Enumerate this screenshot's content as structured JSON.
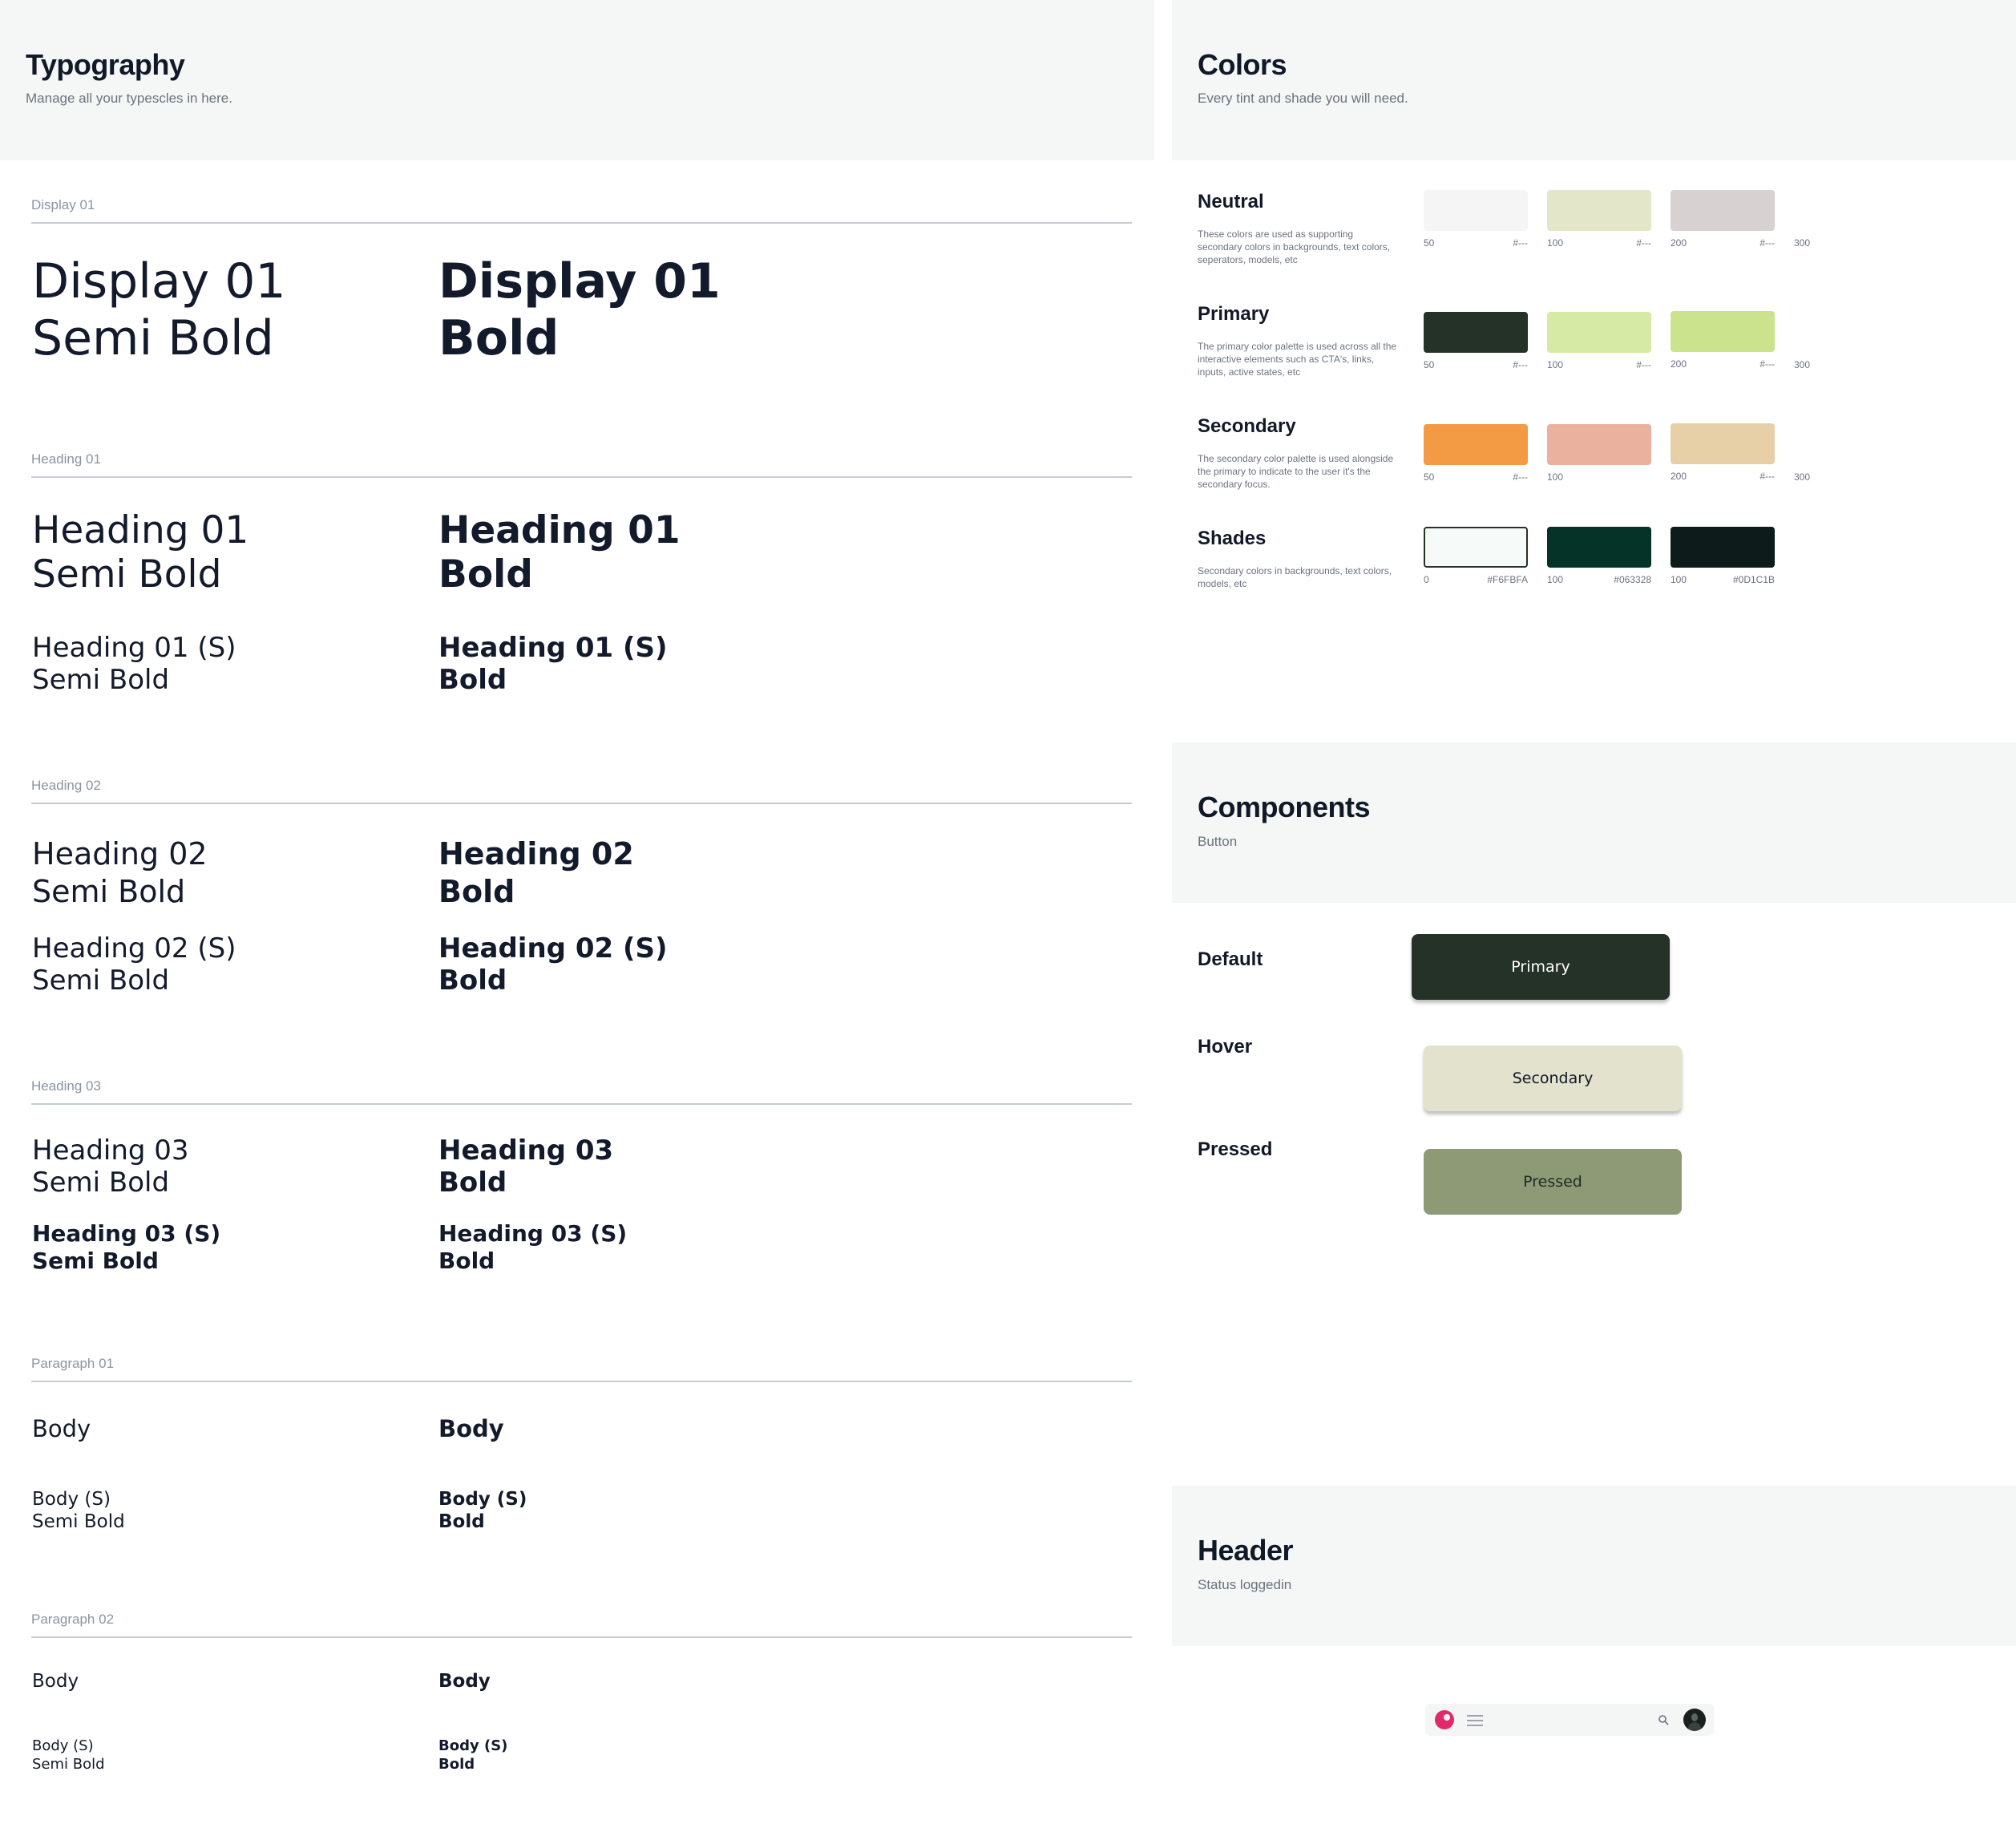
{
  "typography": {
    "title": "Typography",
    "subtitle": "Manage all your typescles in here.",
    "sections": {
      "display01": {
        "label": "Display 01",
        "semi": "Display 01\nSemi Bold",
        "bold": "Display 01\nBold"
      },
      "heading01": {
        "label": "Heading 01",
        "semi": "Heading 01\nSemi Bold",
        "bold": "Heading 01\nBold",
        "small_semi": "Heading 01 (S)\nSemi Bold",
        "small_bold": "Heading 01 (S)\nBold"
      },
      "heading02": {
        "label": "Heading 02",
        "semi": "Heading 02\nSemi Bold",
        "bold": "Heading 02\nBold",
        "small_semi": "Heading 02 (S)\nSemi Bold",
        "small_bold": "Heading 02 (S)\nBold"
      },
      "heading03": {
        "label": "Heading 03",
        "semi": "Heading 03\nSemi Bold",
        "bold": "Heading 03\nBold",
        "small_semi": "Heading 03 (S)\nSemi Bold",
        "small_bold": "Heading 03 (S)\nBold"
      },
      "paragraph01": {
        "label": "Paragraph 01",
        "body_semi": "Body",
        "body_bold": "Body",
        "small_semi": "Body (S)\nSemi Bold",
        "small_bold": "Body (S)\nBold"
      },
      "paragraph02": {
        "label": "Paragraph 02",
        "body_semi": "Body",
        "body_bold": "Body",
        "small_semi": "Body (S)\nSemi Bold",
        "small_bold": "Body (S)\nBold"
      }
    }
  },
  "colors": {
    "title": "Colors",
    "subtitle": "Every tint and shade you will need.",
    "groups": [
      {
        "name": "Neutral",
        "desc": "These colors are used as supporting secondary colors in backgrounds, text colors, seperators, models, etc",
        "swatches": [
          {
            "step": "50",
            "hex": "#---",
            "color": "#f5f5f5"
          },
          {
            "step": "100",
            "hex": "#---",
            "color": "#e3e6c9"
          },
          {
            "step": "200",
            "hex": "#---",
            "color": "#d7d1d1"
          }
        ],
        "extra": "300"
      },
      {
        "name": "Primary",
        "desc": "The primary color palette is used across all the interactive elements such as CTA's, links, inputs, active states, etc",
        "swatches": [
          {
            "step": "50",
            "hex": "#---",
            "color": "#253227"
          },
          {
            "step": "100",
            "hex": "#---",
            "color": "#d6e9a5"
          },
          {
            "step": "200",
            "hex": "#---",
            "color": "#cbe38c"
          }
        ],
        "extra": "300"
      },
      {
        "name": "Secondary",
        "desc": "The secondary color palette is used alongside the primary to indicate to the user it's the secondary focus.",
        "swatches": [
          {
            "step": "50",
            "hex": "#---",
            "color": "#f29a44"
          },
          {
            "step": "100",
            "hex": "",
            "color": "#ebb19f"
          },
          {
            "step": "200",
            "hex": "#---",
            "color": "#e7cfa8"
          }
        ],
        "extra": "300"
      },
      {
        "name": "Shades",
        "desc": "Secondary colors in backgrounds, text colors, models, etc",
        "swatches": [
          {
            "step": "0",
            "hex": "#F6FBFA",
            "color": "#f6fbfa"
          },
          {
            "step": "100",
            "hex": "#063328",
            "color": "#063328"
          },
          {
            "step": "100",
            "hex": "#0D1C1B",
            "color": "#0d1c1b"
          }
        ],
        "extra": ""
      }
    ]
  },
  "components": {
    "title": "Components",
    "subtitle": "Button",
    "states": [
      {
        "label": "Default",
        "button": "Primary"
      },
      {
        "label": "Hover",
        "button": "Secondary"
      },
      {
        "label": "Pressed",
        "button": "Pressed"
      }
    ],
    "colors": {
      "primary_bg": "#253227",
      "secondary_bg": "#e3e2cd",
      "pressed_bg": "#8e9a76"
    }
  },
  "header": {
    "title": "Header",
    "subtitle": "Status loggedin",
    "icons": [
      "logo-icon",
      "menu-icon",
      "search-icon",
      "avatar"
    ]
  }
}
